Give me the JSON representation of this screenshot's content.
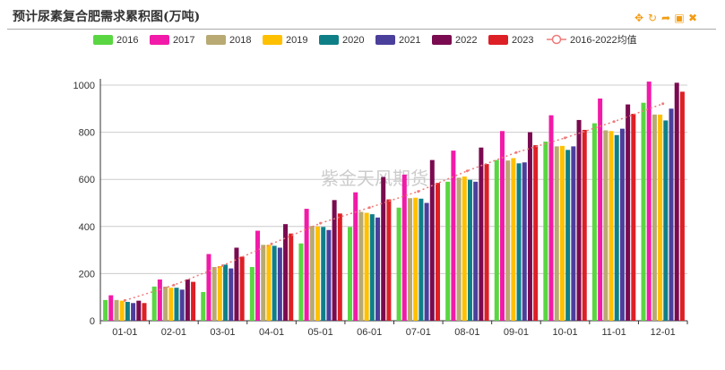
{
  "title": "预计尿素复合肥需求累积图(万吨)",
  "watermark": "紫金天风期货",
  "toolbox": [
    {
      "name": "move-icon",
      "glyph": "✥"
    },
    {
      "name": "refresh-icon",
      "glyph": "↻"
    },
    {
      "name": "share-icon",
      "glyph": "➦"
    },
    {
      "name": "save-image-icon",
      "glyph": "▣"
    },
    {
      "name": "close-icon",
      "glyph": "✖"
    }
  ],
  "chart_data": {
    "type": "bar",
    "categories": [
      "01-01",
      "02-01",
      "03-01",
      "04-01",
      "05-01",
      "06-01",
      "07-01",
      "08-01",
      "09-01",
      "10-01",
      "11-01",
      "12-01"
    ],
    "ylim": [
      0,
      1000
    ],
    "yticks": [
      0,
      200,
      400,
      600,
      800,
      1000
    ],
    "grid": true,
    "legend_position": "top",
    "series": [
      {
        "name": "2016",
        "color": "#5ad642",
        "values": [
          88,
          145,
          122,
          228,
          328,
          398,
          480,
          590,
          682,
          760,
          838,
          925
        ]
      },
      {
        "name": "2017",
        "color": "#f21aa8",
        "values": [
          108,
          175,
          283,
          382,
          475,
          545,
          620,
          722,
          805,
          872,
          943,
          1015
        ]
      },
      {
        "name": "2018",
        "color": "#b8aa72",
        "values": [
          88,
          145,
          228,
          322,
          402,
          462,
          520,
          607,
          680,
          740,
          808,
          875
        ]
      },
      {
        "name": "2019",
        "color": "#ffc000",
        "values": [
          85,
          140,
          232,
          322,
          400,
          458,
          522,
          612,
          690,
          742,
          805,
          875
        ]
      },
      {
        "name": "2020",
        "color": "#0f7f87",
        "values": [
          80,
          140,
          238,
          318,
          398,
          452,
          518,
          598,
          668,
          725,
          788,
          850
        ]
      },
      {
        "name": "2021",
        "color": "#4b3f9c",
        "values": [
          75,
          132,
          222,
          310,
          385,
          438,
          500,
          590,
          672,
          740,
          815,
          900
        ]
      },
      {
        "name": "2022",
        "color": "#7a0b50",
        "values": [
          85,
          175,
          310,
          410,
          512,
          610,
          682,
          735,
          800,
          852,
          918,
          1010
        ]
      },
      {
        "name": "2023",
        "color": "#dd1f26",
        "values": [
          75,
          165,
          272,
          370,
          455,
          515,
          585,
          665,
          745,
          810,
          878,
          972
        ]
      }
    ],
    "average_series": {
      "name": "2016-2022均值",
      "color": "#f07a7a",
      "values": [
        86,
        151,
        234,
        326,
        414,
        480,
        549,
        636,
        714,
        776,
        845,
        921
      ]
    }
  }
}
